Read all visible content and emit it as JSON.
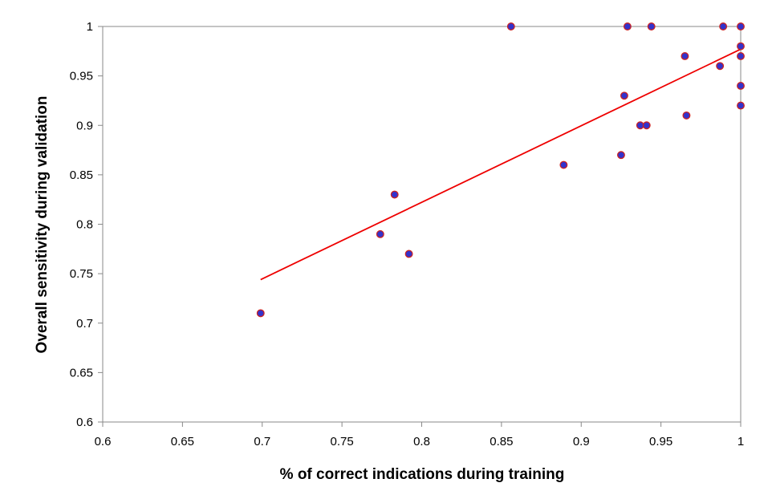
{
  "chart_data": {
    "type": "scatter",
    "title": "",
    "xlabel": "% of correct indications during training",
    "ylabel": "Overall sensitivity during validation",
    "xlim": [
      0.6,
      1.0
    ],
    "ylim": [
      0.6,
      1.0
    ],
    "x_ticks": [
      "0.6",
      "0.65",
      "0.7",
      "0.75",
      "0.8",
      "0.85",
      "0.9",
      "0.95",
      "1"
    ],
    "y_ticks": [
      "0.6",
      "0.65",
      "0.7",
      "0.75",
      "0.8",
      "0.85",
      "0.9",
      "0.95",
      "1"
    ],
    "grid": "horizontal line at 1 only",
    "legend": "none",
    "points": [
      {
        "x": 0.699,
        "y": 0.71
      },
      {
        "x": 0.774,
        "y": 0.79
      },
      {
        "x": 0.783,
        "y": 0.83
      },
      {
        "x": 0.792,
        "y": 0.77
      },
      {
        "x": 0.856,
        "y": 1.0
      },
      {
        "x": 0.889,
        "y": 0.86
      },
      {
        "x": 0.925,
        "y": 0.87
      },
      {
        "x": 0.927,
        "y": 0.93
      },
      {
        "x": 0.929,
        "y": 1.0
      },
      {
        "x": 0.937,
        "y": 0.9
      },
      {
        "x": 0.941,
        "y": 0.9
      },
      {
        "x": 0.944,
        "y": 1.0
      },
      {
        "x": 0.965,
        "y": 0.97
      },
      {
        "x": 0.966,
        "y": 0.91
      },
      {
        "x": 0.987,
        "y": 0.96
      },
      {
        "x": 0.989,
        "y": 1.0
      },
      {
        "x": 1.0,
        "y": 1.0
      },
      {
        "x": 1.0,
        "y": 0.98
      },
      {
        "x": 1.0,
        "y": 0.97
      },
      {
        "x": 1.0,
        "y": 0.94
      },
      {
        "x": 1.0,
        "y": 0.92
      }
    ],
    "trendline": {
      "x_start": 0.699,
      "y_start": 0.744,
      "x_end": 1.0,
      "y_end": 0.977
    },
    "colors": {
      "marker_fill": "#3333cc",
      "marker_edge": "#cc2222",
      "trendline": "#ee0000",
      "axis": "#888888"
    }
  }
}
